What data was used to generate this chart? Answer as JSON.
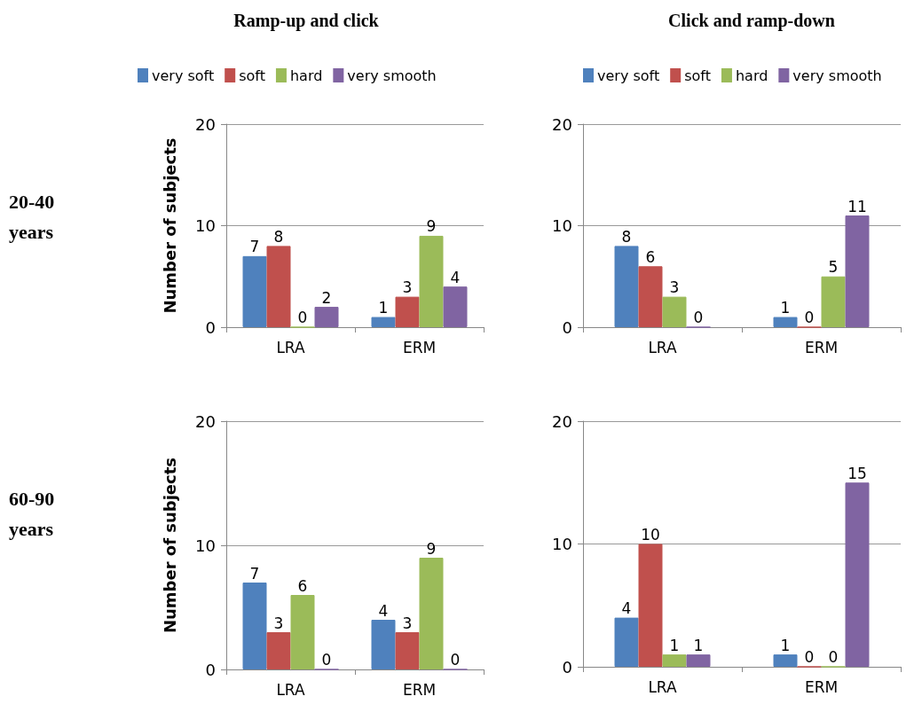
{
  "chart_data": [
    {
      "type": "bar",
      "title": "Ramp-up and click",
      "ylabel": "Number of subjects",
      "annotations": [
        "20-40 years"
      ],
      "categories": [
        "LRA",
        "ERM"
      ],
      "ylim": [
        0,
        20
      ],
      "yticks": [
        0,
        10,
        20
      ],
      "grid": "y",
      "legend": "top",
      "data_labels": true,
      "series": [
        {
          "name": "very soft",
          "color": "#4f81bd",
          "values": [
            7,
            1
          ]
        },
        {
          "name": "soft",
          "color": "#c0504d",
          "values": [
            8,
            3
          ]
        },
        {
          "name": "hard",
          "color": "#9bbb59",
          "values": [
            0,
            9
          ]
        },
        {
          "name": "very smooth",
          "color": "#8064a2",
          "values": [
            2,
            4
          ]
        }
      ]
    },
    {
      "type": "bar",
      "title": "Click and ramp-down",
      "categories": [
        "LRA",
        "ERM"
      ],
      "ylim": [
        0,
        20
      ],
      "yticks": [
        0,
        10,
        20
      ],
      "grid": "y",
      "legend": "top",
      "data_labels": true,
      "series": [
        {
          "name": "very soft",
          "color": "#4f81bd",
          "values": [
            8,
            1
          ]
        },
        {
          "name": "soft",
          "color": "#c0504d",
          "values": [
            6,
            0
          ]
        },
        {
          "name": "hard",
          "color": "#9bbb59",
          "values": [
            3,
            5
          ]
        },
        {
          "name": "very smooth",
          "color": "#8064a2",
          "values": [
            0,
            11
          ]
        }
      ]
    },
    {
      "type": "bar",
      "ylabel": "Number of subjects",
      "annotations": [
        "60-90 years"
      ],
      "categories": [
        "LRA",
        "ERM"
      ],
      "ylim": [
        0,
        20
      ],
      "yticks": [
        0,
        10,
        20
      ],
      "grid": "y",
      "data_labels": true,
      "series": [
        {
          "color": "#4f81bd",
          "values": [
            7,
            4
          ]
        },
        {
          "color": "#c0504d",
          "values": [
            3,
            3
          ]
        },
        {
          "color": "#9bbb59",
          "values": [
            6,
            9
          ]
        },
        {
          "color": "#8064a2",
          "values": [
            0,
            0
          ]
        }
      ]
    },
    {
      "type": "bar",
      "categories": [
        "LRA",
        "ERM"
      ],
      "ylim": [
        0,
        20
      ],
      "yticks": [
        0,
        10,
        20
      ],
      "grid": "y",
      "data_labels": true,
      "series": [
        {
          "color": "#4f81bd",
          "values": [
            4,
            1
          ]
        },
        {
          "color": "#c0504d",
          "values": [
            10,
            0
          ]
        },
        {
          "color": "#9bbb59",
          "values": [
            1,
            0
          ]
        },
        {
          "color": "#8064a2",
          "values": [
            1,
            15
          ]
        }
      ]
    }
  ]
}
